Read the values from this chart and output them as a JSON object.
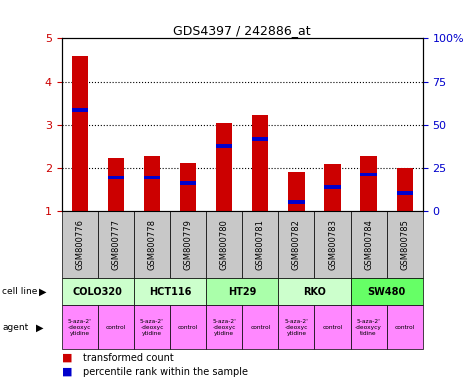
{
  "title": "GDS4397 / 242886_at",
  "samples": [
    "GSM800776",
    "GSM800777",
    "GSM800778",
    "GSM800779",
    "GSM800780",
    "GSM800781",
    "GSM800782",
    "GSM800783",
    "GSM800784",
    "GSM800785"
  ],
  "red_values": [
    4.6,
    2.22,
    2.28,
    2.12,
    3.05,
    3.22,
    1.9,
    2.1,
    2.28,
    2.0
  ],
  "blue_values": [
    3.35,
    1.78,
    1.78,
    1.65,
    2.5,
    2.68,
    1.22,
    1.55,
    1.85,
    1.42
  ],
  "ylim_left": [
    1,
    5
  ],
  "ylim_right": [
    0,
    100
  ],
  "yticks_left": [
    1,
    2,
    3,
    4,
    5
  ],
  "yticks_right": [
    0,
    25,
    50,
    75,
    100
  ],
  "cell_lines": [
    {
      "name": "COLO320",
      "span": [
        0,
        2
      ],
      "color": "#ccffcc"
    },
    {
      "name": "HCT116",
      "span": [
        2,
        4
      ],
      "color": "#ccffcc"
    },
    {
      "name": "HT29",
      "span": [
        4,
        6
      ],
      "color": "#aaffaa"
    },
    {
      "name": "RKO",
      "span": [
        6,
        8
      ],
      "color": "#ccffcc"
    },
    {
      "name": "SW480",
      "span": [
        8,
        10
      ],
      "color": "#66ff66"
    }
  ],
  "agent_texts": [
    "5-aza-2'\n-deoxyc\nytidine",
    "control",
    "5-aza-2'\n-deoxyc\nytidine",
    "control",
    "5-aza-2'\n-deoxyc\nytidine",
    "control",
    "5-aza-2'\n-deoxyc\nytidine",
    "control",
    "5-aza-2'\n-deoxycy\ntidine",
    "control"
  ],
  "bar_color_red": "#cc0000",
  "bar_color_blue": "#0000cc",
  "bar_width": 0.45,
  "bg_color": "#ffffff",
  "tick_color_left": "#cc0000",
  "tick_color_right": "#0000cc",
  "gsm_bg": "#c8c8c8",
  "agent_color": "#ff88ff",
  "left_label_color": "#000000"
}
